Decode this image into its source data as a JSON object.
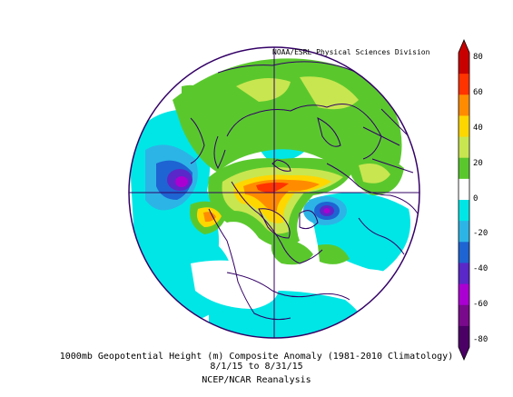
{
  "credit": "NOAA/ESRL Physical Sciences Division",
  "caption": {
    "line1": "1000mb Geopotential Height (m) Composite Anomaly (1981-2010 Climatology)",
    "line2": "8/1/15 to 8/31/15",
    "line3": "NCEP/NCAR Reanalysis"
  },
  "colorbar": {
    "labels": [
      "80",
      "60",
      "40",
      "20",
      "0",
      "-20",
      "-40",
      "-60",
      "-80"
    ],
    "colors": [
      "#c80000",
      "#ff3300",
      "#ff8c00",
      "#ffd700",
      "#c8e650",
      "#5ac82d",
      "#ffffff",
      "#00e6e6",
      "#2db4e6",
      "#1e64d2",
      "#5a28c8",
      "#aa00d2",
      "#7a0a8c",
      "#4b0066"
    ]
  },
  "colors": {
    "coast": "#330066",
    "grid": "#330066",
    "background": "#ffffff"
  }
}
